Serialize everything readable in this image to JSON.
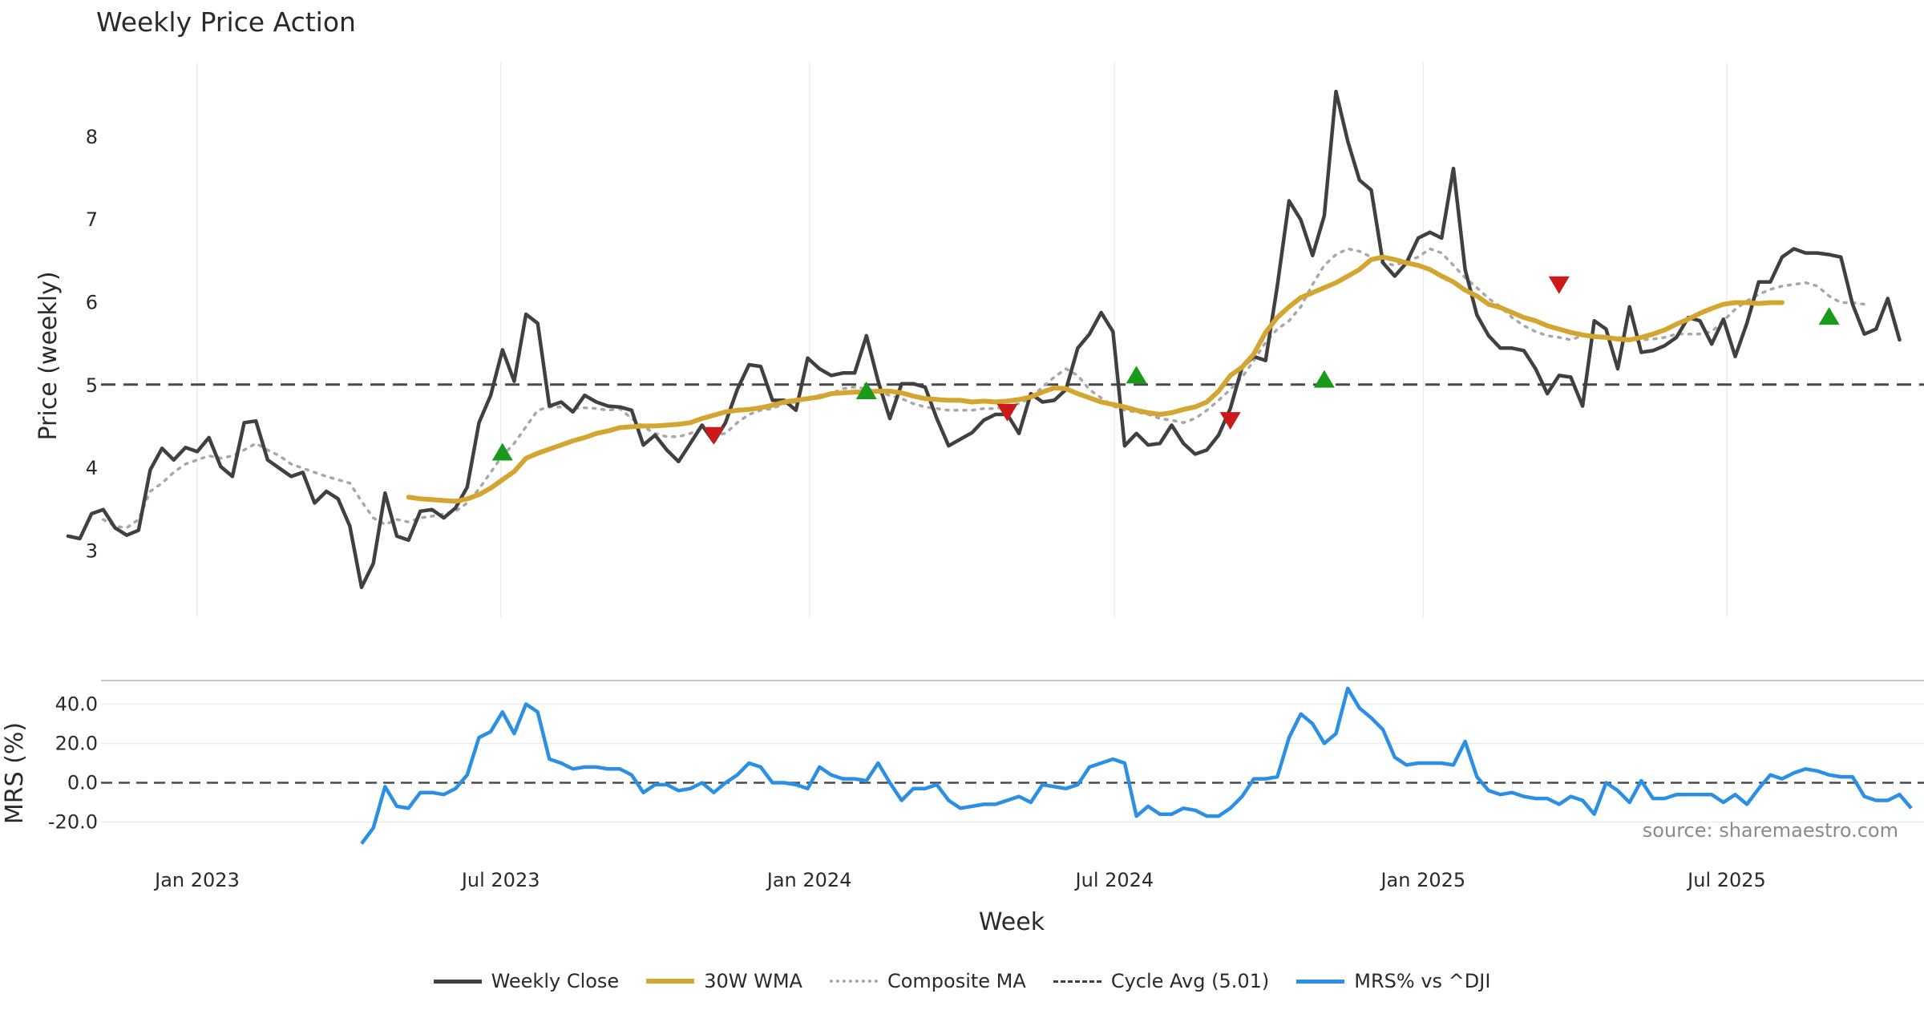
{
  "chart_data": [
    {
      "type": "line",
      "title": "Weekly Price Action",
      "xlabel": "",
      "ylabel": "Price (weekly)",
      "ylim": [
        2.2,
        8.9
      ],
      "yticks": [
        3,
        4,
        5,
        6,
        7,
        8
      ],
      "x_start": "2022-10-16",
      "x_step_days": 7,
      "cycle_avg": 5.01,
      "series": [
        {
          "name": "Weekly Close",
          "color": "#404040",
          "offset": 0,
          "values": [
            3.18,
            3.15,
            3.45,
            3.5,
            3.28,
            3.19,
            3.25,
            3.98,
            4.24,
            4.1,
            4.25,
            4.2,
            4.37,
            4.02,
            3.9,
            4.55,
            4.57,
            4.1,
            4.0,
            3.9,
            3.95,
            3.58,
            3.72,
            3.63,
            3.3,
            2.56,
            2.85,
            3.7,
            3.18,
            3.13,
            3.48,
            3.5,
            3.4,
            3.52,
            3.77,
            4.55,
            4.88,
            5.43,
            5.05,
            5.86,
            5.75,
            4.75,
            4.8,
            4.68,
            4.88,
            4.8,
            4.75,
            4.74,
            4.7,
            4.28,
            4.4,
            4.22,
            4.08,
            4.3,
            4.52,
            4.32,
            4.55,
            4.95,
            5.25,
            5.23,
            4.82,
            4.82,
            4.7,
            5.33,
            5.2,
            5.12,
            5.15,
            5.15,
            5.6,
            5.05,
            4.6,
            5.02,
            5.02,
            4.98,
            4.6,
            4.27,
            4.35,
            4.43,
            4.58,
            4.65,
            4.65,
            4.42,
            4.9,
            4.8,
            4.82,
            4.95,
            5.45,
            5.62,
            5.88,
            5.65,
            4.27,
            4.42,
            4.28,
            4.3,
            4.52,
            4.3,
            4.17,
            4.22,
            4.4,
            4.72,
            5.22,
            5.35,
            5.3,
            6.2,
            7.23,
            7.0,
            6.57,
            7.05,
            8.55,
            7.95,
            7.48,
            7.36,
            6.48,
            6.32,
            6.48,
            6.78,
            6.85,
            6.78,
            7.62,
            6.4,
            5.85,
            5.6,
            5.45,
            5.45,
            5.42,
            5.2,
            4.9,
            5.12,
            5.1,
            4.75,
            5.78,
            5.68,
            5.2,
            5.95,
            5.4,
            5.42,
            5.48,
            5.58,
            5.82,
            5.78,
            5.5,
            5.8,
            5.35,
            5.75,
            6.25,
            6.25,
            6.55,
            6.65,
            6.6,
            6.6,
            6.58,
            6.55,
            5.98,
            5.62,
            5.68,
            6.05,
            5.55
          ]
        },
        {
          "name": "30W WMA",
          "color": "#d4a530",
          "offset": 29,
          "values": [
            3.65,
            3.63,
            3.62,
            3.61,
            3.6,
            3.63,
            3.68,
            3.76,
            3.86,
            3.96,
            4.12,
            4.18,
            4.23,
            4.28,
            4.33,
            4.37,
            4.42,
            4.45,
            4.49,
            4.5,
            4.51,
            4.51,
            4.52,
            4.53,
            4.55,
            4.6,
            4.64,
            4.68,
            4.7,
            4.71,
            4.73,
            4.76,
            4.8,
            4.82,
            4.84,
            4.86,
            4.9,
            4.91,
            4.92,
            4.92,
            4.93,
            4.93,
            4.91,
            4.87,
            4.84,
            4.83,
            4.82,
            4.82,
            4.8,
            4.81,
            4.8,
            4.81,
            4.83,
            4.86,
            4.92,
            4.97,
            4.96,
            4.9,
            4.85,
            4.8,
            4.77,
            4.74,
            4.7,
            4.67,
            4.65,
            4.67,
            4.71,
            4.74,
            4.8,
            4.93,
            5.12,
            5.22,
            5.38,
            5.64,
            5.82,
            5.95,
            6.06,
            6.12,
            6.18,
            6.24,
            6.32,
            6.4,
            6.52,
            6.55,
            6.52,
            6.48,
            6.45,
            6.4,
            6.32,
            6.25,
            6.15,
            6.08,
            5.98,
            5.94,
            5.88,
            5.82,
            5.78,
            5.72,
            5.68,
            5.64,
            5.61,
            5.59,
            5.58,
            5.56,
            5.55,
            5.58,
            5.62,
            5.67,
            5.74,
            5.8,
            5.87,
            5.93,
            5.98,
            6.0,
            6.0,
            5.99,
            6.0,
            6.0
          ]
        },
        {
          "name": "Composite MA",
          "color": "#a8a8a8",
          "offset": 3,
          "values": [
            3.38,
            3.3,
            3.28,
            3.38,
            3.72,
            3.82,
            3.95,
            4.05,
            4.1,
            4.15,
            4.12,
            4.15,
            4.22,
            4.3,
            4.22,
            4.15,
            4.05,
            4.0,
            3.95,
            3.9,
            3.86,
            3.82,
            3.6,
            3.4,
            3.32,
            3.38,
            3.35,
            3.4,
            3.42,
            3.45,
            3.48,
            3.58,
            3.75,
            3.95,
            4.15,
            4.3,
            4.5,
            4.7,
            4.74,
            4.74,
            4.72,
            4.73,
            4.72,
            4.7,
            4.72,
            4.6,
            4.5,
            4.42,
            4.38,
            4.38,
            4.42,
            4.48,
            4.4,
            4.42,
            4.55,
            4.65,
            4.7,
            4.72,
            4.78,
            4.8,
            4.85,
            4.88,
            4.9,
            4.96,
            4.98,
            4.96,
            4.92,
            4.88,
            4.84,
            4.78,
            4.74,
            4.72,
            4.7,
            4.7,
            4.7,
            4.72,
            4.72,
            4.75,
            4.78,
            4.85,
            4.98,
            5.1,
            5.2,
            5.12,
            4.95,
            4.85,
            4.75,
            4.7,
            4.68,
            4.65,
            4.6,
            4.58,
            4.55,
            4.6,
            4.7,
            4.82,
            4.95,
            5.1,
            5.3,
            5.52,
            5.68,
            5.78,
            5.95,
            6.22,
            6.45,
            6.58,
            6.65,
            6.62,
            6.55,
            6.48,
            6.45,
            6.5,
            6.55,
            6.65,
            6.6,
            6.45,
            6.3,
            6.18,
            6.05,
            5.95,
            5.82,
            5.72,
            5.65,
            5.6,
            5.58,
            5.55,
            5.6,
            5.6,
            5.58,
            5.58,
            5.56,
            5.55,
            5.56,
            5.58,
            5.62,
            5.62,
            5.62,
            5.65,
            5.78,
            5.92,
            6.02,
            6.1,
            6.16,
            6.2,
            6.22,
            6.24,
            6.2,
            6.08,
            6.0,
            6.0,
            5.98
          ]
        }
      ],
      "buy_signals": [
        {
          "i": 37,
          "y": 4.19
        },
        {
          "i": 68,
          "y": 4.93
        },
        {
          "i": 91,
          "y": 5.12
        },
        {
          "i": 107,
          "y": 5.07
        },
        {
          "i": 150,
          "y": 5.83
        }
      ],
      "sell_signals": [
        {
          "i": 55,
          "y": 4.4
        },
        {
          "i": 80,
          "y": 4.68
        },
        {
          "i": 99,
          "y": 4.58
        },
        {
          "i": 127,
          "y": 6.22
        }
      ]
    },
    {
      "type": "line",
      "title": "",
      "xlabel": "Week",
      "ylabel": "MRS (%)",
      "ylim": [
        -30,
        52
      ],
      "yticks": [
        -20.0,
        0.0,
        20.0,
        40.0
      ],
      "x_ticks": [
        "Jan 2023",
        "Jul 2023",
        "Jan 2024",
        "Jul 2024",
        "Jan 2025",
        "Jul 2025"
      ],
      "x_tick_dates": [
        "2023-01-01",
        "2023-07-01",
        "2024-01-01",
        "2024-07-01",
        "2025-01-01",
        "2025-07-01"
      ],
      "series": [
        {
          "name": "MRS% vs ^DJI",
          "color": "#2b8fe6",
          "offset": 25,
          "values": [
            -31,
            -23,
            -2,
            -12,
            -13,
            -5,
            -5,
            -6,
            -3,
            4,
            23,
            26,
            36,
            25,
            40,
            36,
            12,
            10,
            7,
            8,
            8,
            7,
            7,
            4,
            -5,
            -1,
            -1,
            -4,
            -3,
            0,
            -5,
            0,
            4,
            10,
            8,
            0,
            0,
            -1,
            -3,
            8,
            4,
            2,
            2,
            1,
            10,
            0,
            -9,
            -3,
            -3,
            -1,
            -9,
            -13,
            -12,
            -11,
            -11,
            -9,
            -7,
            -10,
            -1,
            -2,
            -3,
            -1,
            8,
            10,
            12,
            10,
            -17,
            -12,
            -16,
            -16,
            -13,
            -14,
            -17,
            -17,
            -13,
            -7,
            2,
            2,
            3,
            23,
            35,
            30,
            20,
            25,
            48,
            38,
            33,
            27,
            13,
            9,
            10,
            10,
            10,
            9,
            21,
            3,
            -4,
            -6,
            -5,
            -7,
            -8,
            -8,
            -11,
            -7,
            -9,
            -16,
            0,
            -4,
            -10,
            1,
            -8,
            -8,
            -6,
            -6,
            -6,
            -6,
            -10,
            -6,
            -11,
            -3,
            4,
            2,
            5,
            7,
            6,
            4,
            3,
            3,
            -7,
            -9,
            -9,
            -6,
            -13
          ]
        }
      ]
    }
  ],
  "header": {
    "title": "Weekly Price Action"
  },
  "footer": {
    "source": "source: sharemaestro.com"
  },
  "legend": {
    "items": [
      {
        "label": "Weekly Close",
        "color": "#404040"
      },
      {
        "label": "30W WMA",
        "color": "#d4a530"
      },
      {
        "label": "Composite MA",
        "color": "#a8a8a8"
      },
      {
        "label": "Cycle Avg (5.01)",
        "color": "#404040"
      },
      {
        "label": "MRS% vs ^DJI",
        "color": "#2b8fe6"
      }
    ]
  },
  "markers": {
    "buy_color": "#1a9a1a",
    "sell_color": "#cc1a1a"
  }
}
